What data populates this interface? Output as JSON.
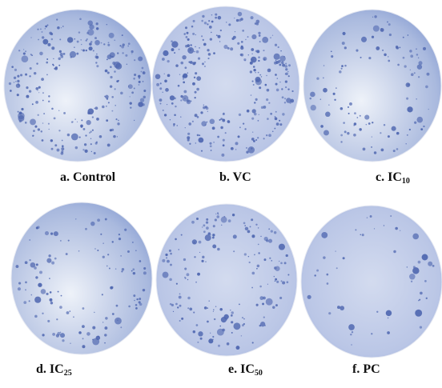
{
  "panels": [
    {
      "label": "a. Control"
    },
    {
      "label": "b. VC"
    },
    {
      "label": "c. IC",
      "subscript": "10"
    },
    {
      "label": "d. IC",
      "subscript": "25"
    },
    {
      "label": "e. IC",
      "subscript": "50"
    },
    {
      "label": "f. PC"
    }
  ]
}
